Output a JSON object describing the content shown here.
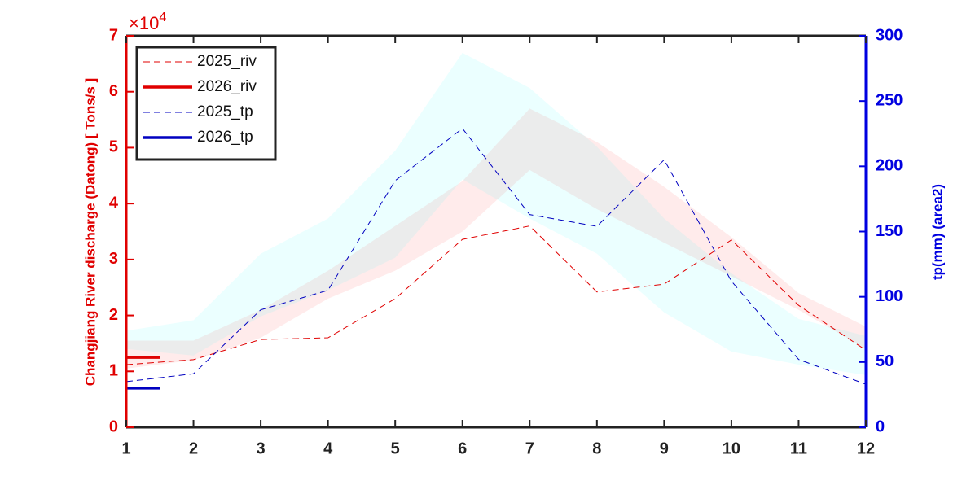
{
  "chart_data": {
    "type": "line",
    "x": [
      1,
      2,
      3,
      4,
      5,
      6,
      7,
      8,
      9,
      10,
      11,
      12
    ],
    "xlim": [
      1,
      12
    ],
    "xticks": [
      1,
      2,
      3,
      4,
      5,
      6,
      7,
      8,
      9,
      10,
      11,
      12
    ],
    "ylim": [
      0,
      7
    ],
    "yticks": [
      0,
      1,
      2,
      3,
      4,
      5,
      6,
      7
    ],
    "y_multiplier": {
      "base": "×10",
      "exponent": "4"
    },
    "y2lim": [
      0,
      300
    ],
    "y2ticks": [
      0,
      50,
      100,
      150,
      200,
      250,
      300
    ],
    "ylabel": "Changjiang River discharge (Datong) [ Tons/s ]",
    "y2label": "tp(mm) (area2)",
    "legend": "upper left",
    "bands": [
      {
        "color": "#ff0000",
        "axis": "y",
        "lower": [
          1.05,
          1.2,
          1.6,
          2.3,
          2.8,
          3.5,
          4.6,
          3.9,
          3.3,
          2.7,
          2.1,
          1.4
        ],
        "upper": [
          1.55,
          1.55,
          2.1,
          2.8,
          3.6,
          4.4,
          5.7,
          5.1,
          4.3,
          3.4,
          2.4,
          1.8
        ]
      },
      {
        "color": "#00ffff",
        "axis": "y2",
        "lower": [
          60,
          55,
          85,
          105,
          130,
          190,
          160,
          133,
          88,
          58,
          48,
          40
        ],
        "upper": [
          74,
          82,
          133,
          160,
          212,
          287,
          260,
          215,
          160,
          118,
          83,
          70
        ]
      }
    ],
    "series": [
      {
        "name": "2025_riv",
        "color": "#e00000",
        "style": "dashed",
        "axis": "y",
        "values": [
          1.12,
          1.21,
          1.57,
          1.6,
          2.3,
          3.36,
          3.6,
          2.42,
          2.56,
          3.35,
          2.18,
          1.38
        ]
      },
      {
        "name": "2026_riv",
        "color": "#e00000",
        "style": "solid",
        "axis": "y",
        "x": [
          1,
          1.5
        ],
        "values": [
          1.25,
          1.25
        ]
      },
      {
        "name": "2025_tp",
        "color": "#0000c0",
        "style": "dashed",
        "axis": "y2",
        "values": [
          35,
          41,
          90,
          105,
          189,
          229,
          163,
          154,
          205,
          112,
          52,
          33
        ]
      },
      {
        "name": "2026_tp",
        "color": "#0000c0",
        "style": "solid",
        "axis": "y2",
        "x": [
          1,
          1.5
        ],
        "values": [
          30,
          30
        ]
      }
    ]
  }
}
